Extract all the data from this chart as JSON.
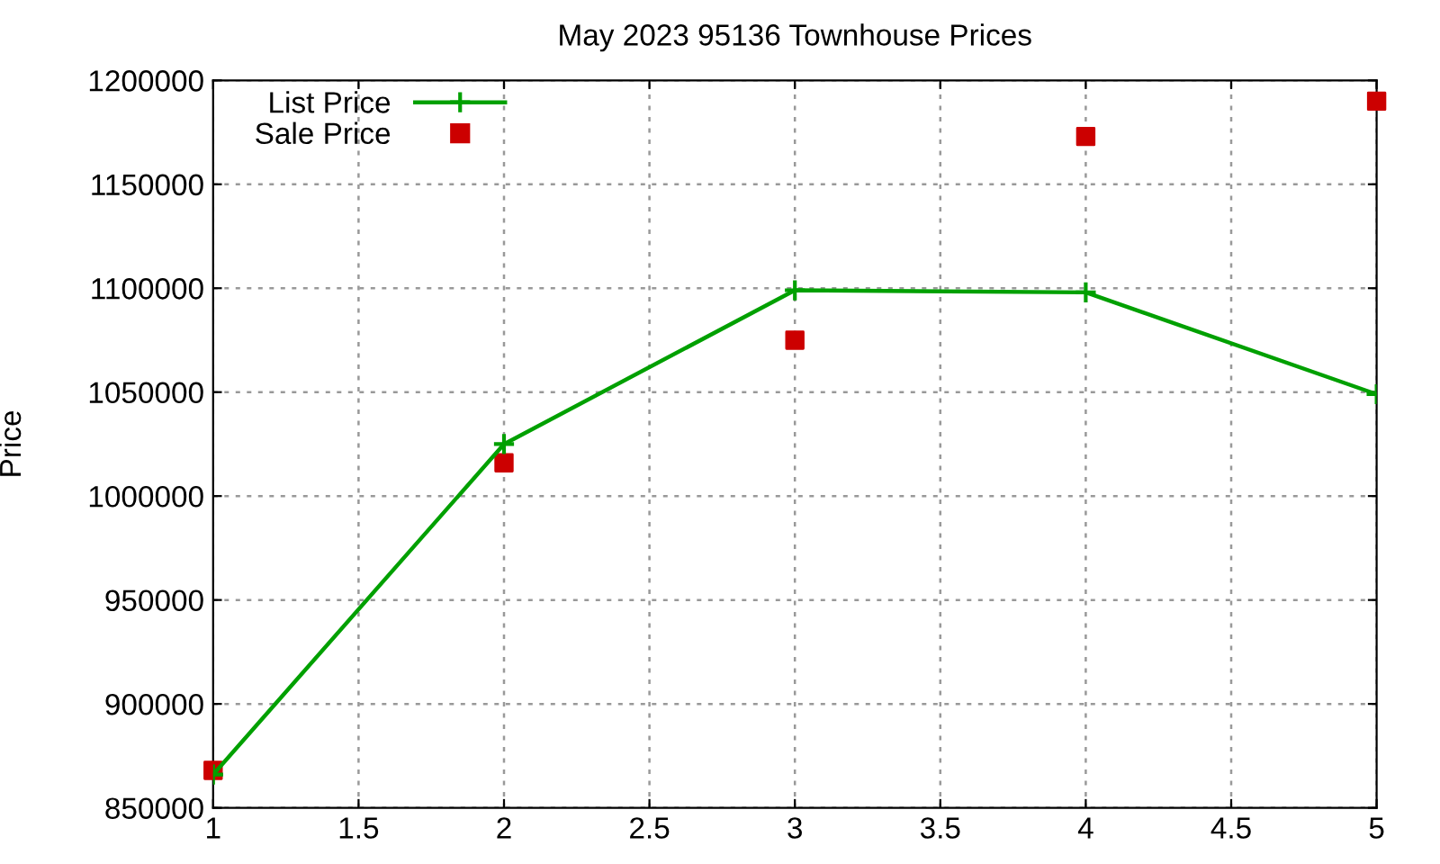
{
  "chart_data": {
    "type": "line",
    "title": "May 2023 95136 Townhouse Prices",
    "ylabel": "Price",
    "x": [
      1,
      2,
      3,
      4,
      5
    ],
    "series": [
      {
        "name": "List Price",
        "color": "#00a000",
        "marker": "cross",
        "values": [
          866000,
          1025000,
          1099000,
          1098000,
          1049000
        ]
      },
      {
        "name": "Sale Price",
        "type": "scatter",
        "color": "#cc0000",
        "marker": "square",
        "values": [
          868000,
          1016000,
          1075000,
          1173000,
          1190000
        ]
      }
    ],
    "xlim": [
      1,
      5
    ],
    "xticks": [
      1,
      1.5,
      2,
      2.5,
      3,
      3.5,
      4,
      4.5,
      5
    ],
    "ylim": [
      850000,
      1200000
    ],
    "yticks": [
      850000,
      900000,
      950000,
      1000000,
      1050000,
      1100000,
      1150000,
      1200000
    ],
    "grid": true,
    "legend": "top left"
  }
}
